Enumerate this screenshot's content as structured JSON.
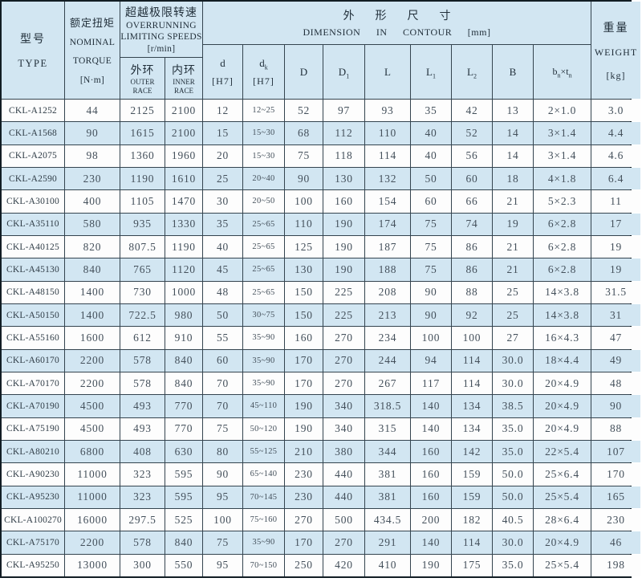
{
  "table": {
    "header": {
      "type": {
        "zh": "型号",
        "en": "TYPE"
      },
      "torque": {
        "zh": "额定扭矩",
        "en_line1": "NOMINAL",
        "en_line2": "TORQUE",
        "unit": "[N·m]"
      },
      "speeds": {
        "zh": "超越极限转速",
        "en_line1": "OVERRUNNING",
        "en_line2": "LIMITING SPEEDS",
        "unit": "[r/min]",
        "outer": {
          "zh": "外环",
          "en": "OUTER RACE"
        },
        "inner": {
          "zh": "内环",
          "en": "INNER RACE"
        }
      },
      "dimension": {
        "zh": "外形尺寸",
        "en": "DIMENSION IN CONTOUR",
        "unit": "[mm]",
        "cols": [
          {
            "base": "d",
            "sub": "",
            "unit": "[H7]"
          },
          {
            "base": "d",
            "sub": "k",
            "unit": "[H7]"
          },
          {
            "base": "D",
            "sub": ""
          },
          {
            "base": "D",
            "sub": "1"
          },
          {
            "base": "L",
            "sub": ""
          },
          {
            "base": "L",
            "sub": "1"
          },
          {
            "base": "L",
            "sub": "2"
          },
          {
            "base": "B",
            "sub": ""
          },
          {
            "p1": "b",
            "s1": "n",
            "mid": "×",
            "p2": "t",
            "s2": "n"
          }
        ]
      },
      "weight": {
        "zh": "重量",
        "en": "WEIGHT",
        "unit": "[kg]"
      }
    },
    "rows": [
      [
        "CKL-A1252",
        "44",
        "2125",
        "2100",
        "12",
        "12~25",
        "52",
        "97",
        "93",
        "35",
        "42",
        "13",
        "2×1.0",
        "3.0"
      ],
      [
        "CKL-A1568",
        "90",
        "1615",
        "2100",
        "15",
        "15~30",
        "68",
        "112",
        "110",
        "40",
        "52",
        "14",
        "3×1.4",
        "4.4"
      ],
      [
        "CKL-A2075",
        "98",
        "1360",
        "1960",
        "20",
        "15~30",
        "75",
        "118",
        "114",
        "40",
        "56",
        "14",
        "3×1.4",
        "4.6"
      ],
      [
        "CKL-A2590",
        "230",
        "1190",
        "1610",
        "25",
        "20~40",
        "90",
        "130",
        "132",
        "50",
        "60",
        "18",
        "4×1.8",
        "6.4"
      ],
      [
        "CKL-A30100",
        "400",
        "1105",
        "1470",
        "30",
        "20~50",
        "100",
        "160",
        "154",
        "60",
        "66",
        "21",
        "5×2.3",
        "11"
      ],
      [
        "CKL-A35110",
        "580",
        "935",
        "1330",
        "35",
        "25~65",
        "110",
        "190",
        "174",
        "75",
        "74",
        "19",
        "6×2.8",
        "17"
      ],
      [
        "CKL-A40125",
        "820",
        "807.5",
        "1190",
        "40",
        "25~65",
        "125",
        "190",
        "187",
        "75",
        "86",
        "21",
        "6×2.8",
        "19"
      ],
      [
        "CKL-A45130",
        "840",
        "765",
        "1120",
        "45",
        "25~65",
        "130",
        "190",
        "188",
        "75",
        "86",
        "21",
        "6×2.8",
        "19"
      ],
      [
        "CKL-A48150",
        "1400",
        "730",
        "1000",
        "48",
        "25~65",
        "150",
        "225",
        "208",
        "90",
        "88",
        "25",
        "14×3.8",
        "31.5"
      ],
      [
        "CKL-A50150",
        "1400",
        "722.5",
        "980",
        "50",
        "30~75",
        "150",
        "225",
        "213",
        "90",
        "92",
        "25",
        "14×3.8",
        "31"
      ],
      [
        "CKL-A55160",
        "1600",
        "612",
        "910",
        "55",
        "35~90",
        "160",
        "270",
        "234",
        "100",
        "100",
        "27",
        "16×4.3",
        "47"
      ],
      [
        "CKL-A60170",
        "2200",
        "578",
        "840",
        "60",
        "35~90",
        "170",
        "270",
        "244",
        "94",
        "114",
        "30.0",
        "18×4.4",
        "49"
      ],
      [
        "CKL-A70170",
        "2200",
        "578",
        "840",
        "70",
        "35~90",
        "170",
        "270",
        "267",
        "117",
        "114",
        "30.0",
        "20×4.9",
        "48"
      ],
      [
        "CKL-A70190",
        "4500",
        "493",
        "770",
        "70",
        "45~110",
        "190",
        "340",
        "318.5",
        "140",
        "134",
        "38.5",
        "20×4.9",
        "90"
      ],
      [
        "CKL-A75190",
        "4500",
        "493",
        "770",
        "75",
        "50~120",
        "190",
        "340",
        "315",
        "140",
        "134",
        "35.0",
        "20×4.9",
        "88"
      ],
      [
        "CKL-A80210",
        "6800",
        "408",
        "630",
        "80",
        "55~125",
        "210",
        "380",
        "344",
        "160",
        "142",
        "35.0",
        "22×5.4",
        "107"
      ],
      [
        "CKL-A90230",
        "11000",
        "323",
        "595",
        "90",
        "65~140",
        "230",
        "440",
        "381",
        "160",
        "159",
        "50.0",
        "25×6.4",
        "170"
      ],
      [
        "CKL-A95230",
        "11000",
        "323",
        "595",
        "95",
        "70~145",
        "230",
        "440",
        "381",
        "160",
        "159",
        "50.0",
        "25×5.4",
        "165"
      ],
      [
        "CKL-A100270",
        "16000",
        "297.5",
        "525",
        "100",
        "75~160",
        "270",
        "500",
        "434.5",
        "200",
        "182",
        "40.5",
        "28×6.4",
        "230"
      ],
      [
        "CKL-A75170",
        "2200",
        "578",
        "840",
        "75",
        "35~90",
        "170",
        "270",
        "291",
        "140",
        "114",
        "30.0",
        "20×4.9",
        "46"
      ],
      [
        "CKL-A95250",
        "13000",
        "300",
        "550",
        "95",
        "70~150",
        "250",
        "420",
        "410",
        "190",
        "175",
        "35.0",
        "25×5.4",
        "198"
      ]
    ]
  },
  "colors": {
    "band_blue": "#d2e6f2",
    "grid_line": "#34444f",
    "outer_border": "#121d24",
    "header_text": "#22303b",
    "data_text": "#44505b"
  }
}
